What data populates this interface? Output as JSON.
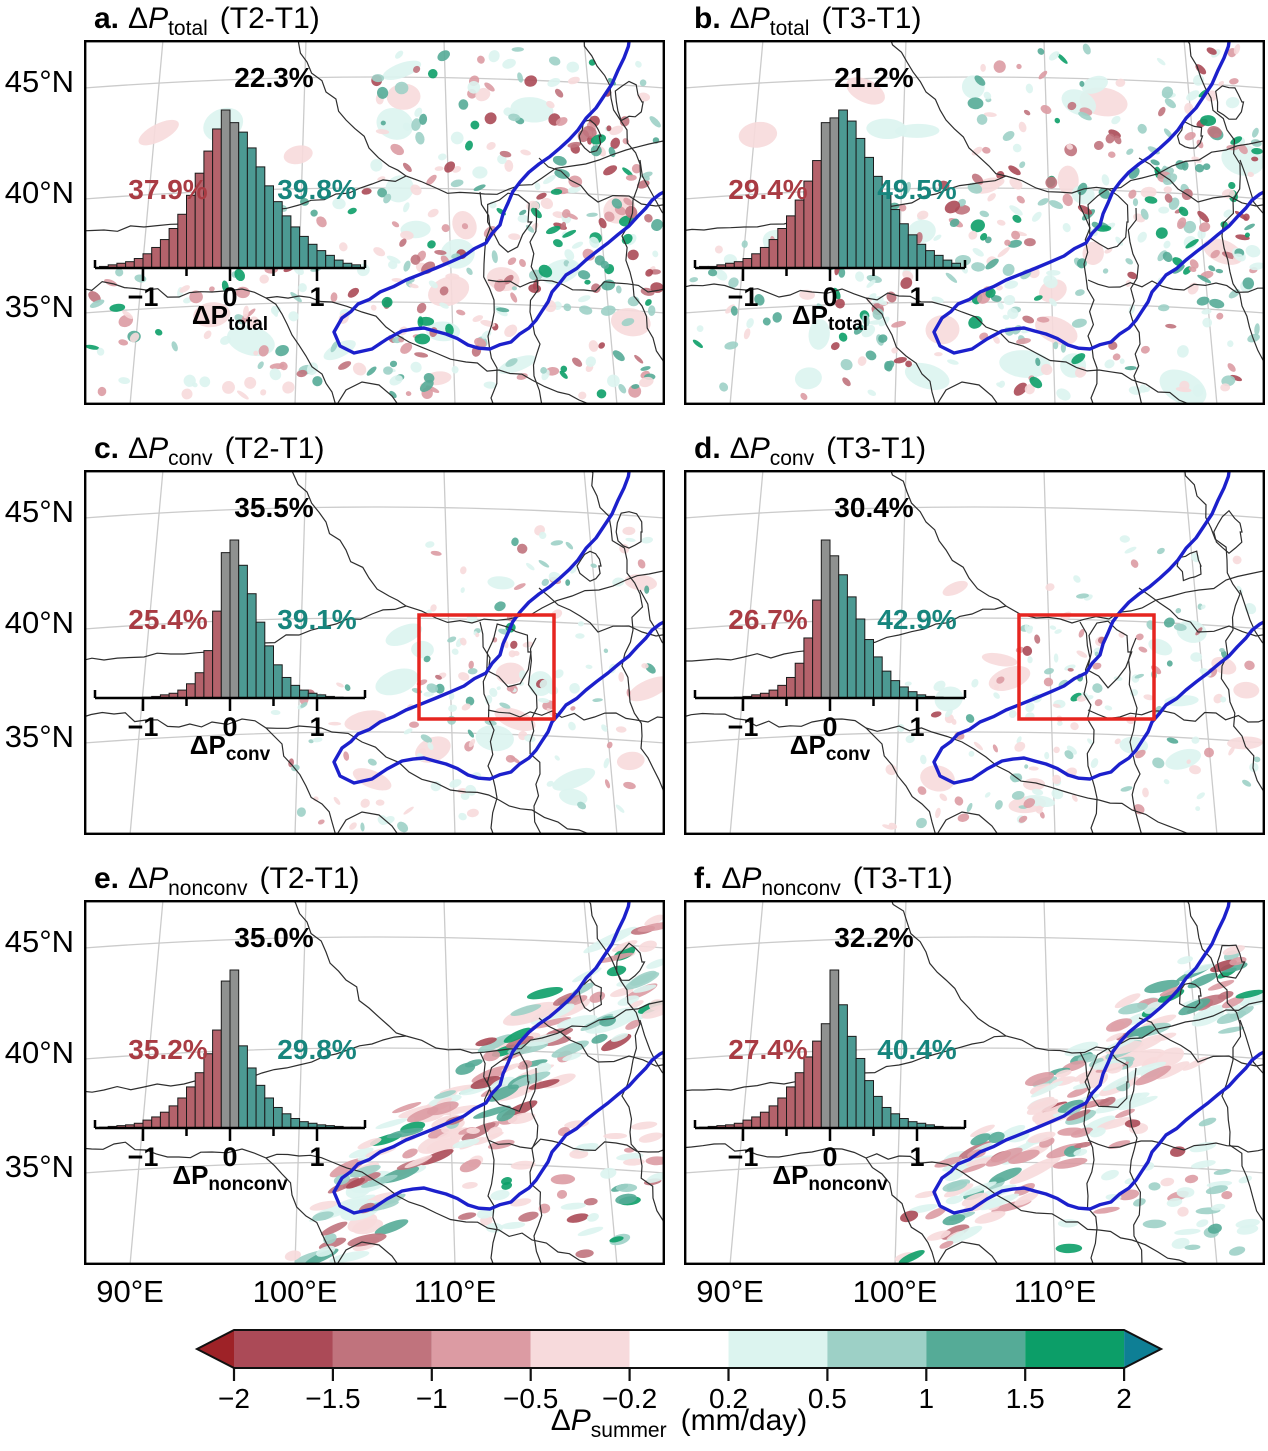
{
  "symbols": {
    "delta": "Δ",
    "p": "P"
  },
  "axes": {
    "lat": [
      "45°N",
      "40°N",
      "35°N"
    ],
    "lon": [
      "90°E",
      "100°E",
      "110°E"
    ],
    "hist_ticks": [
      "−1",
      "0",
      "1"
    ]
  },
  "panels": [
    {
      "letter": "a.",
      "sub": "total",
      "period": "(T2-T1)",
      "pct_gray": "22.3%",
      "pct_neg": "37.9%",
      "pct_pos": "39.8%"
    },
    {
      "letter": "b.",
      "sub": "total",
      "period": "(T3-T1)",
      "pct_gray": "21.2%",
      "pct_neg": "29.4%",
      "pct_pos": "49.5%"
    },
    {
      "letter": "c.",
      "sub": "conv",
      "period": "(T2-T1)",
      "pct_gray": "35.5%",
      "pct_neg": "25.4%",
      "pct_pos": "39.1%"
    },
    {
      "letter": "d.",
      "sub": "conv",
      "period": "(T3-T1)",
      "pct_gray": "30.4%",
      "pct_neg": "26.7%",
      "pct_pos": "42.9%"
    },
    {
      "letter": "e.",
      "sub": "nonconv",
      "period": "(T2-T1)",
      "pct_gray": "35.0%",
      "pct_neg": "35.2%",
      "pct_pos": "29.8%"
    },
    {
      "letter": "f.",
      "sub": "nonconv",
      "period": "(T3-T1)",
      "pct_gray": "32.2%",
      "pct_neg": "27.4%",
      "pct_pos": "40.4%"
    }
  ],
  "colorbar": {
    "tick_labels": [
      "−2",
      "−1.5",
      "−1",
      "−0.5",
      "−0.2",
      "0.2",
      "0.5",
      "1",
      "1.5",
      "2"
    ],
    "segment_colors": [
      "#ab4a57",
      "#c0737d",
      "#dc9ba3",
      "#f7dadc",
      "#ffffff",
      "#dcf4ef",
      "#9dd0c6",
      "#55ab97",
      "#0c9e68"
    ],
    "left_arrow_color": "#9e2227",
    "right_arrow_color": "#0e7f95",
    "label_sub": "summer",
    "label_unit": "(mm/day)"
  },
  "colors": {
    "red_bar": "#b4626b",
    "gray_bar": "#8f9190",
    "teal_bar": "#4c9a93",
    "red_text": "#a93b43",
    "teal_text": "#17857d",
    "river_blue": "#1c20cc",
    "highlight_box_red": "#e62520",
    "border_black": "#2e2e2e",
    "graticule_gray": "#cbcbcb"
  },
  "chart_data": {
    "panels": [
      {
        "panel": "a",
        "type": "map+histogram",
        "variable": "ΔP_total",
        "comparison": "T2-T1",
        "percent_negative": 37.9,
        "percent_near_zero": 22.3,
        "percent_positive": 39.8,
        "highlight_box": false,
        "histogram": {
          "bin_start": -1.5,
          "bin_width": 0.1,
          "x_ticks": [
            -1,
            0,
            1
          ],
          "xlabel": "ΔP_total",
          "heights": [
            1,
            2,
            3,
            4,
            6,
            9,
            13,
            18,
            25,
            34,
            46,
            60,
            74,
            88,
            100,
            92,
            86,
            76,
            64,
            52,
            42,
            33,
            26,
            20,
            15,
            11,
            8,
            5,
            3,
            2
          ]
        }
      },
      {
        "panel": "b",
        "type": "map+histogram",
        "variable": "ΔP_total",
        "comparison": "T3-T1",
        "percent_negative": 29.4,
        "percent_near_zero": 21.2,
        "percent_positive": 49.5,
        "highlight_box": false,
        "histogram": {
          "bin_start": -1.5,
          "bin_width": 0.1,
          "x_ticks": [
            -1,
            0,
            1
          ],
          "xlabel": "ΔP_total",
          "heights": [
            1,
            1,
            2,
            3,
            4,
            6,
            9,
            13,
            18,
            25,
            33,
            43,
            55,
            68,
            92,
            95,
            100,
            93,
            82,
            70,
            58,
            47,
            37,
            28,
            21,
            15,
            11,
            8,
            5,
            3
          ]
        }
      },
      {
        "panel": "c",
        "type": "map+histogram",
        "variable": "ΔP_conv",
        "comparison": "T2-T1",
        "percent_negative": 25.4,
        "percent_near_zero": 35.5,
        "percent_positive": 39.1,
        "highlight_box": true,
        "histogram": {
          "bin_start": -1.5,
          "bin_width": 0.1,
          "x_ticks": [
            -1,
            0,
            1
          ],
          "xlabel": "ΔP_conv",
          "heights": [
            0,
            0,
            0,
            0,
            0,
            0.5,
            1,
            2,
            3,
            5,
            9,
            16,
            30,
            55,
            92,
            100,
            84,
            66,
            48,
            33,
            21,
            13,
            8,
            5,
            3,
            2,
            1,
            0.5,
            0,
            0
          ]
        }
      },
      {
        "panel": "d",
        "type": "map+histogram",
        "variable": "ΔP_conv",
        "comparison": "T3-T1",
        "percent_negative": 26.7,
        "percent_near_zero": 30.4,
        "percent_positive": 42.9,
        "highlight_box": true,
        "histogram": {
          "bin_start": -1.5,
          "bin_width": 0.1,
          "x_ticks": [
            -1,
            0,
            1
          ],
          "xlabel": "ΔP_conv",
          "heights": [
            0,
            0,
            0,
            0,
            0.5,
            1,
            2,
            3,
            5,
            8,
            13,
            22,
            38,
            62,
            100,
            90,
            78,
            64,
            50,
            37,
            26,
            17,
            11,
            7,
            4,
            2,
            1,
            0.5,
            0,
            0
          ]
        }
      },
      {
        "panel": "e",
        "type": "map+histogram",
        "variable": "ΔP_nonconv",
        "comparison": "T2-T1",
        "percent_negative": 35.2,
        "percent_near_zero": 35.0,
        "percent_positive": 29.8,
        "highlight_box": false,
        "histogram": {
          "bin_start": -1.5,
          "bin_width": 0.1,
          "x_ticks": [
            -1,
            0,
            1
          ],
          "xlabel": "ΔP_nonconv",
          "heights": [
            0.5,
            1,
            1.5,
            2,
            3,
            5,
            7,
            10,
            14,
            19,
            26,
            35,
            47,
            62,
            93,
            100,
            52,
            38,
            27,
            19,
            13,
            9,
            6,
            4,
            3,
            2,
            1.5,
            1,
            0.5,
            0.5
          ]
        }
      },
      {
        "panel": "f",
        "type": "map+histogram",
        "variable": "ΔP_nonconv",
        "comparison": "T3-T1",
        "percent_negative": 27.4,
        "percent_near_zero": 32.2,
        "percent_positive": 40.4,
        "highlight_box": false,
        "histogram": {
          "bin_start": -1.5,
          "bin_width": 0.1,
          "x_ticks": [
            -1,
            0,
            1
          ],
          "xlabel": "ΔP_nonconv",
          "heights": [
            0.5,
            1,
            1.5,
            2,
            3,
            5,
            7,
            10,
            14,
            19,
            26,
            35,
            45,
            55,
            66,
            100,
            78,
            58,
            44,
            30,
            20,
            13,
            9,
            6,
            4,
            3,
            2,
            1,
            0.5,
            0.5
          ]
        }
      }
    ],
    "colorbar": {
      "type": "colorbar",
      "label": "ΔP_summer (mm/day)",
      "tick_values": [
        -2,
        -1.5,
        -1,
        -0.5,
        -0.2,
        0.2,
        0.5,
        1,
        1.5,
        2
      ],
      "segment_colors": [
        "#ab4a57",
        "#c0737d",
        "#dc9ba3",
        "#f7dadc",
        "#ffffff",
        "#dcf4ef",
        "#9dd0c6",
        "#55ab97",
        "#0c9e68"
      ]
    },
    "map_axes": {
      "lat_ticks": [
        "45°N",
        "40°N",
        "35°N"
      ],
      "lon_ticks": [
        "90°E",
        "100°E",
        "110°E"
      ]
    }
  }
}
